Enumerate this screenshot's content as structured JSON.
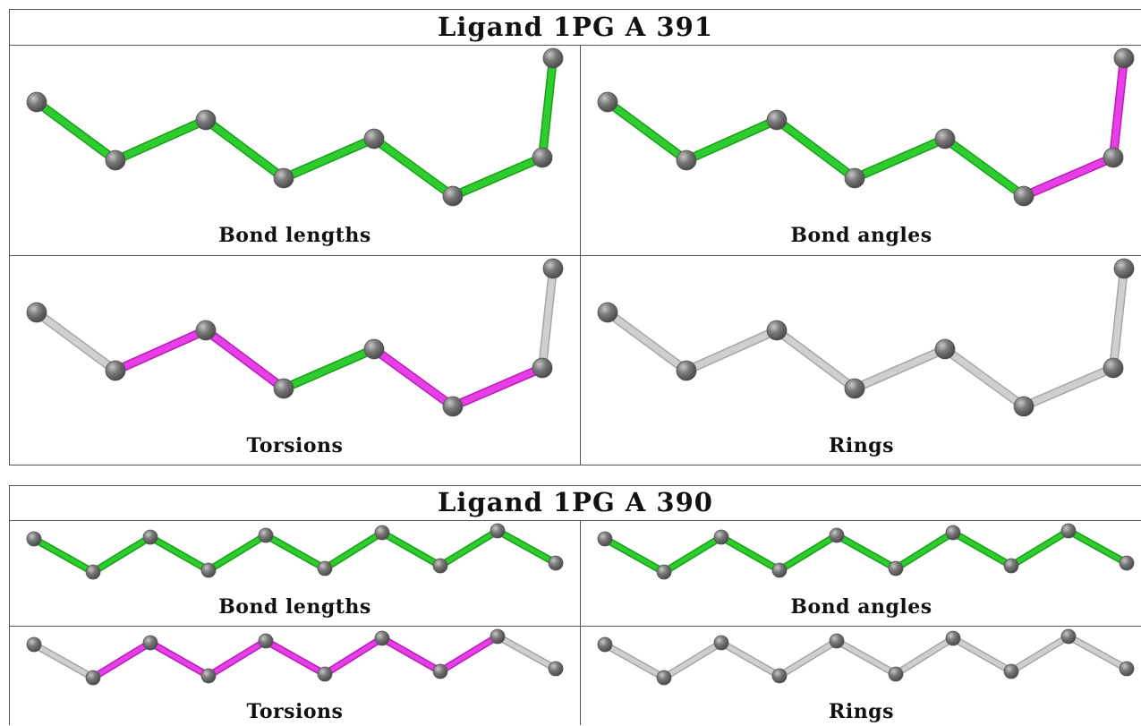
{
  "colors": {
    "ok": "#2ecc2e",
    "ok_dark": "#16a016",
    "outlier": "#e83ee8",
    "outlier_dark": "#b81cb8",
    "neutral": "#cfcfcf",
    "neutral_dark": "#a6a6a6",
    "atom": "#7a7a7a"
  },
  "ligands": [
    {
      "title": "Ligand 1PG A 391",
      "panels": [
        {
          "label": "Bond lengths",
          "bonds": [
            "ok",
            "ok",
            "ok",
            "ok",
            "ok",
            "ok",
            "ok"
          ]
        },
        {
          "label": "Bond angles",
          "bonds": [
            "ok",
            "ok",
            "ok",
            "ok",
            "ok",
            "outlier",
            "outlier"
          ]
        },
        {
          "label": "Torsions",
          "bonds": [
            "neutral",
            "outlier",
            "outlier",
            "ok",
            "outlier",
            "outlier",
            "neutral"
          ]
        },
        {
          "label": "Rings",
          "bonds": [
            "neutral",
            "neutral",
            "neutral",
            "neutral",
            "neutral",
            "neutral",
            "neutral"
          ]
        }
      ]
    },
    {
      "title": "Ligand 1PG A 390",
      "panels": [
        {
          "label": "Bond lengths",
          "bonds": [
            "ok",
            "ok",
            "ok",
            "ok",
            "ok",
            "ok",
            "ok",
            "ok",
            "ok"
          ]
        },
        {
          "label": "Bond angles",
          "bonds": [
            "ok",
            "ok",
            "ok",
            "ok",
            "ok",
            "ok",
            "ok",
            "ok",
            "ok"
          ]
        },
        {
          "label": "Torsions",
          "bonds": [
            "neutral",
            "outlier",
            "outlier",
            "outlier",
            "outlier",
            "outlier",
            "outlier",
            "outlier",
            "neutral"
          ]
        },
        {
          "label": "Rings",
          "bonds": [
            "neutral",
            "neutral",
            "neutral",
            "neutral",
            "neutral",
            "neutral",
            "neutral",
            "neutral",
            "neutral"
          ]
        }
      ]
    }
  ]
}
